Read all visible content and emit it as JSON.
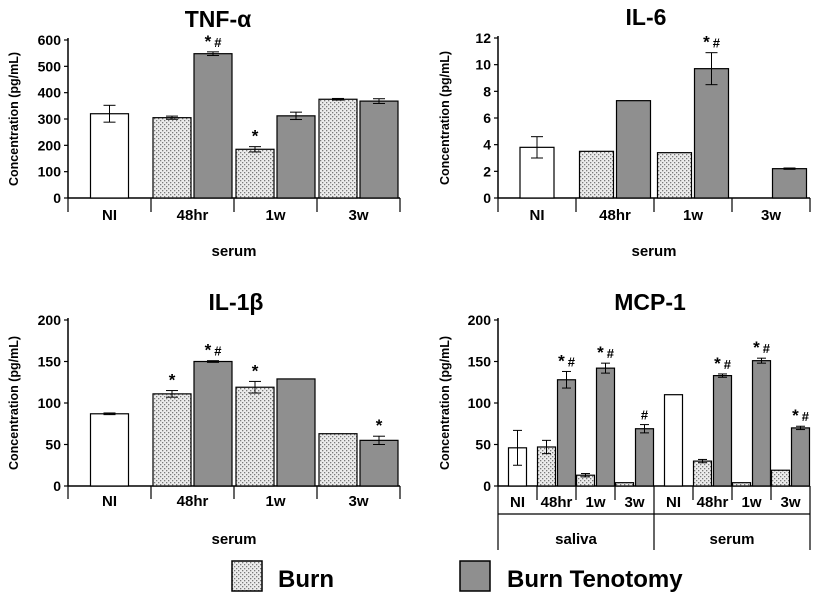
{
  "colors": {
    "control": "#ffffff",
    "burn": "#e6e6e6",
    "burn_tenotomy": "#8f8f8f",
    "axis": "#000000"
  },
  "legend": [
    {
      "label": "Burn",
      "pattern": "dots"
    },
    {
      "label": "Burn Tenotomy",
      "pattern": "solid"
    }
  ],
  "chart_data": [
    {
      "type": "bar",
      "title": "TNF-α",
      "ylabel": "Concentration (pg/mL)",
      "ylim": [
        0,
        600
      ],
      "yticks": [
        0,
        100,
        200,
        300,
        400,
        500,
        600
      ],
      "groups": [
        {
          "label": "serum",
          "categories": [
            {
              "label": "NI",
              "bars": [
                {
                  "series": "control",
                  "value": 320,
                  "err": 32
                }
              ]
            },
            {
              "label": "48hr",
              "bars": [
                {
                  "series": "burn",
                  "value": 305,
                  "err": 6
                },
                {
                  "series": "burn_tenotomy",
                  "value": 548,
                  "err": 7,
                  "sig": "* #"
                }
              ]
            },
            {
              "label": "1w",
              "bars": [
                {
                  "series": "burn",
                  "value": 185,
                  "err": 10,
                  "sig": "*"
                },
                {
                  "series": "burn_tenotomy",
                  "value": 312,
                  "err": 14
                }
              ]
            },
            {
              "label": "3w",
              "bars": [
                {
                  "series": "burn",
                  "value": 375,
                  "err": 3
                },
                {
                  "series": "burn_tenotomy",
                  "value": 368,
                  "err": 9
                }
              ]
            }
          ]
        }
      ]
    },
    {
      "type": "bar",
      "title": "IL-6",
      "ylabel": "Concentration (pg/mL)",
      "ylim": [
        0,
        12
      ],
      "yticks": [
        0,
        2,
        4,
        6,
        8,
        10,
        12
      ],
      "groups": [
        {
          "label": "serum",
          "categories": [
            {
              "label": "NI",
              "bars": [
                {
                  "series": "control",
                  "value": 3.8,
                  "err": 0.8
                }
              ]
            },
            {
              "label": "48hr",
              "bars": [
                {
                  "series": "burn",
                  "value": 3.5,
                  "err": 0
                },
                {
                  "series": "burn_tenotomy",
                  "value": 7.3,
                  "err": 0
                }
              ]
            },
            {
              "label": "1w",
              "bars": [
                {
                  "series": "burn",
                  "value": 3.4,
                  "err": 0
                },
                {
                  "series": "burn_tenotomy",
                  "value": 9.7,
                  "err": 1.2,
                  "sig": "* #"
                }
              ]
            },
            {
              "label": "3w",
              "bars": [
                {
                  "series": "burn",
                  "value": 0,
                  "err": 0
                },
                {
                  "series": "burn_tenotomy",
                  "value": 2.2,
                  "err": 0.05
                }
              ]
            }
          ]
        }
      ]
    },
    {
      "type": "bar",
      "title": "IL-1β",
      "ylabel": "Concentration (pg/mL)",
      "ylim": [
        0,
        200
      ],
      "yticks": [
        0,
        50,
        100,
        150,
        200
      ],
      "groups": [
        {
          "label": "serum",
          "categories": [
            {
              "label": "NI",
              "bars": [
                {
                  "series": "control",
                  "value": 87,
                  "err": 1
                }
              ]
            },
            {
              "label": "48hr",
              "bars": [
                {
                  "series": "burn",
                  "value": 111,
                  "err": 4,
                  "sig": "*"
                },
                {
                  "series": "burn_tenotomy",
                  "value": 150,
                  "err": 1,
                  "sig": "* #"
                }
              ]
            },
            {
              "label": "1w",
              "bars": [
                {
                  "series": "burn",
                  "value": 119,
                  "err": 7,
                  "sig": "*"
                },
                {
                  "series": "burn_tenotomy",
                  "value": 129,
                  "err": 0
                }
              ]
            },
            {
              "label": "3w",
              "bars": [
                {
                  "series": "burn",
                  "value": 63,
                  "err": 0
                },
                {
                  "series": "burn_tenotomy",
                  "value": 55,
                  "err": 5,
                  "sig": "*"
                }
              ]
            }
          ]
        }
      ]
    },
    {
      "type": "bar",
      "title": "MCP-1",
      "ylabel": "Concentration (pg/mL)",
      "ylim": [
        0,
        200
      ],
      "yticks": [
        0,
        50,
        100,
        150,
        200
      ],
      "groups": [
        {
          "label": "saliva",
          "categories": [
            {
              "label": "NI",
              "bars": [
                {
                  "series": "control",
                  "value": 46,
                  "err": 21
                }
              ]
            },
            {
              "label": "48hr",
              "bars": [
                {
                  "series": "burn",
                  "value": 47,
                  "err": 8
                },
                {
                  "series": "burn_tenotomy",
                  "value": 128,
                  "err": 10,
                  "sig": "* #"
                }
              ]
            },
            {
              "label": "1w",
              "bars": [
                {
                  "series": "burn",
                  "value": 13,
                  "err": 2
                },
                {
                  "series": "burn_tenotomy",
                  "value": 142,
                  "err": 6,
                  "sig": "* #"
                }
              ]
            },
            {
              "label": "3w",
              "bars": [
                {
                  "series": "burn",
                  "value": 4,
                  "err": 0
                },
                {
                  "series": "burn_tenotomy",
                  "value": 69,
                  "err": 5,
                  "sig": "#"
                }
              ]
            }
          ]
        },
        {
          "label": "serum",
          "categories": [
            {
              "label": "NI",
              "bars": [
                {
                  "series": "control",
                  "value": 110,
                  "err": 0
                }
              ]
            },
            {
              "label": "48hr",
              "bars": [
                {
                  "series": "burn",
                  "value": 30,
                  "err": 2
                },
                {
                  "series": "burn_tenotomy",
                  "value": 133,
                  "err": 2,
                  "sig": "* #"
                }
              ]
            },
            {
              "label": "1w",
              "bars": [
                {
                  "series": "burn",
                  "value": 4,
                  "err": 0
                },
                {
                  "series": "burn_tenotomy",
                  "value": 151,
                  "err": 3,
                  "sig": "* #"
                }
              ]
            },
            {
              "label": "3w",
              "bars": [
                {
                  "series": "burn",
                  "value": 19,
                  "err": 0
                },
                {
                  "series": "burn_tenotomy",
                  "value": 70,
                  "err": 2,
                  "sig": "* #"
                }
              ]
            }
          ]
        }
      ]
    }
  ]
}
